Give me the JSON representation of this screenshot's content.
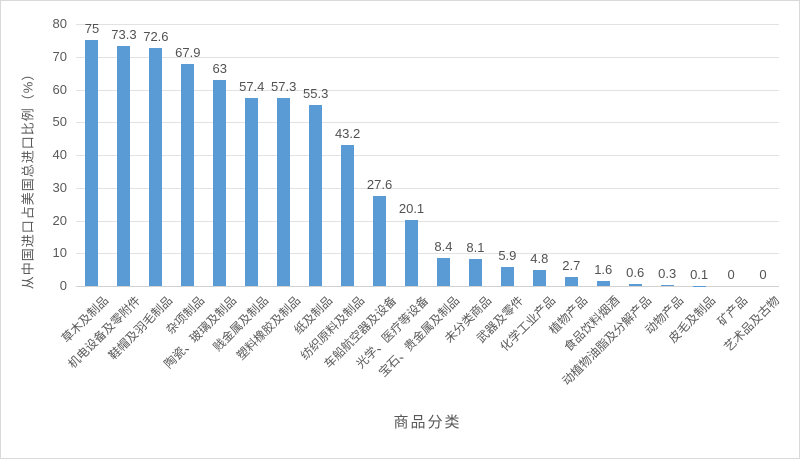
{
  "chart_data": {
    "type": "bar",
    "title": "",
    "xlabel": "商品分类",
    "ylabel": "从中国进口占美国总进口比例（%）",
    "categories": [
      "草木及制品",
      "机电设备及零附件",
      "鞋帽及羽毛制品",
      "杂项制品",
      "陶瓷、玻璃及制品",
      "贱金属及制品",
      "塑料橡胶及制品",
      "纸及制品",
      "纺织原料及制品",
      "车船航空器及设备",
      "光学、医疗等设备",
      "宝石、贵金属及制品",
      "未分类商品",
      "武器及零件",
      "化学工业产品",
      "植物产品",
      "食品饮料烟酒",
      "动植物油脂及分解产品",
      "动物产品",
      "皮毛及制品",
      "矿产品",
      "艺术品及古物"
    ],
    "values": [
      75,
      73.3,
      72.6,
      67.9,
      63,
      57.4,
      57.3,
      55.3,
      43.2,
      27.6,
      20.1,
      8.4,
      8.1,
      5.9,
      4.8,
      2.7,
      1.6,
      0.6,
      0.3,
      0.1,
      0,
      0
    ],
    "value_labels": [
      "75",
      "73.3",
      "72.6",
      "67.9",
      "63",
      "57.4",
      "57.3",
      "55.3",
      "43.2",
      "27.6",
      "20.1",
      "8.4",
      "8.1",
      "5.9",
      "4.8",
      "2.7",
      "1.6",
      "0.6",
      "0.3",
      "0.1",
      "0",
      "0"
    ],
    "ylim": [
      0,
      80
    ],
    "yticks": [
      0,
      10,
      20,
      30,
      40,
      50,
      60,
      70,
      80
    ],
    "grid": true,
    "legend_position": "none",
    "style": {
      "bar_color": "#5b9bd5",
      "grid_color": "#e2e2e2",
      "axis_text_color": "#595959",
      "value_text_color": "#525252",
      "background": "#ffffff",
      "border_color": "#d9d9d9"
    }
  }
}
